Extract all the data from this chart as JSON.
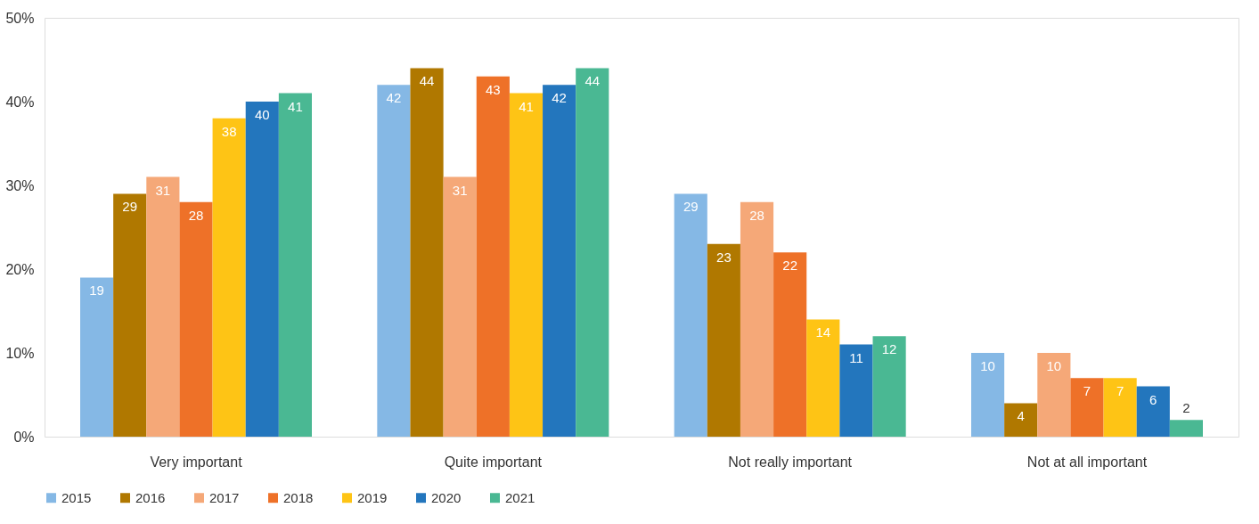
{
  "chart_data": {
    "type": "bar",
    "categories": [
      "Very important",
      "Quite important",
      "Not really important",
      "Not at all important"
    ],
    "series": [
      {
        "name": "2015",
        "color": "#85b8e5",
        "values": [
          19,
          42,
          29,
          10
        ]
      },
      {
        "name": "2016",
        "color": "#b07800",
        "values": [
          29,
          44,
          23,
          4
        ]
      },
      {
        "name": "2017",
        "color": "#f5a878",
        "values": [
          31,
          31,
          28,
          10
        ]
      },
      {
        "name": "2018",
        "color": "#ee7128",
        "values": [
          28,
          43,
          22,
          7
        ]
      },
      {
        "name": "2019",
        "color": "#fec415",
        "values": [
          38,
          41,
          14,
          7
        ]
      },
      {
        "name": "2020",
        "color": "#2376bd",
        "values": [
          40,
          42,
          11,
          6
        ]
      },
      {
        "name": "2021",
        "color": "#4ab893",
        "values": [
          41,
          44,
          12,
          2
        ]
      }
    ],
    "ylim": [
      0,
      50
    ],
    "yticks": [
      {
        "value": 0,
        "label": "0%"
      },
      {
        "value": 10,
        "label": "10%"
      },
      {
        "value": 20,
        "label": "20%"
      },
      {
        "value": 30,
        "label": "30%"
      },
      {
        "value": 40,
        "label": "40%"
      },
      {
        "value": 50,
        "label": "50%"
      }
    ],
    "data_labels": true,
    "grid": false,
    "legend": "bottom"
  }
}
